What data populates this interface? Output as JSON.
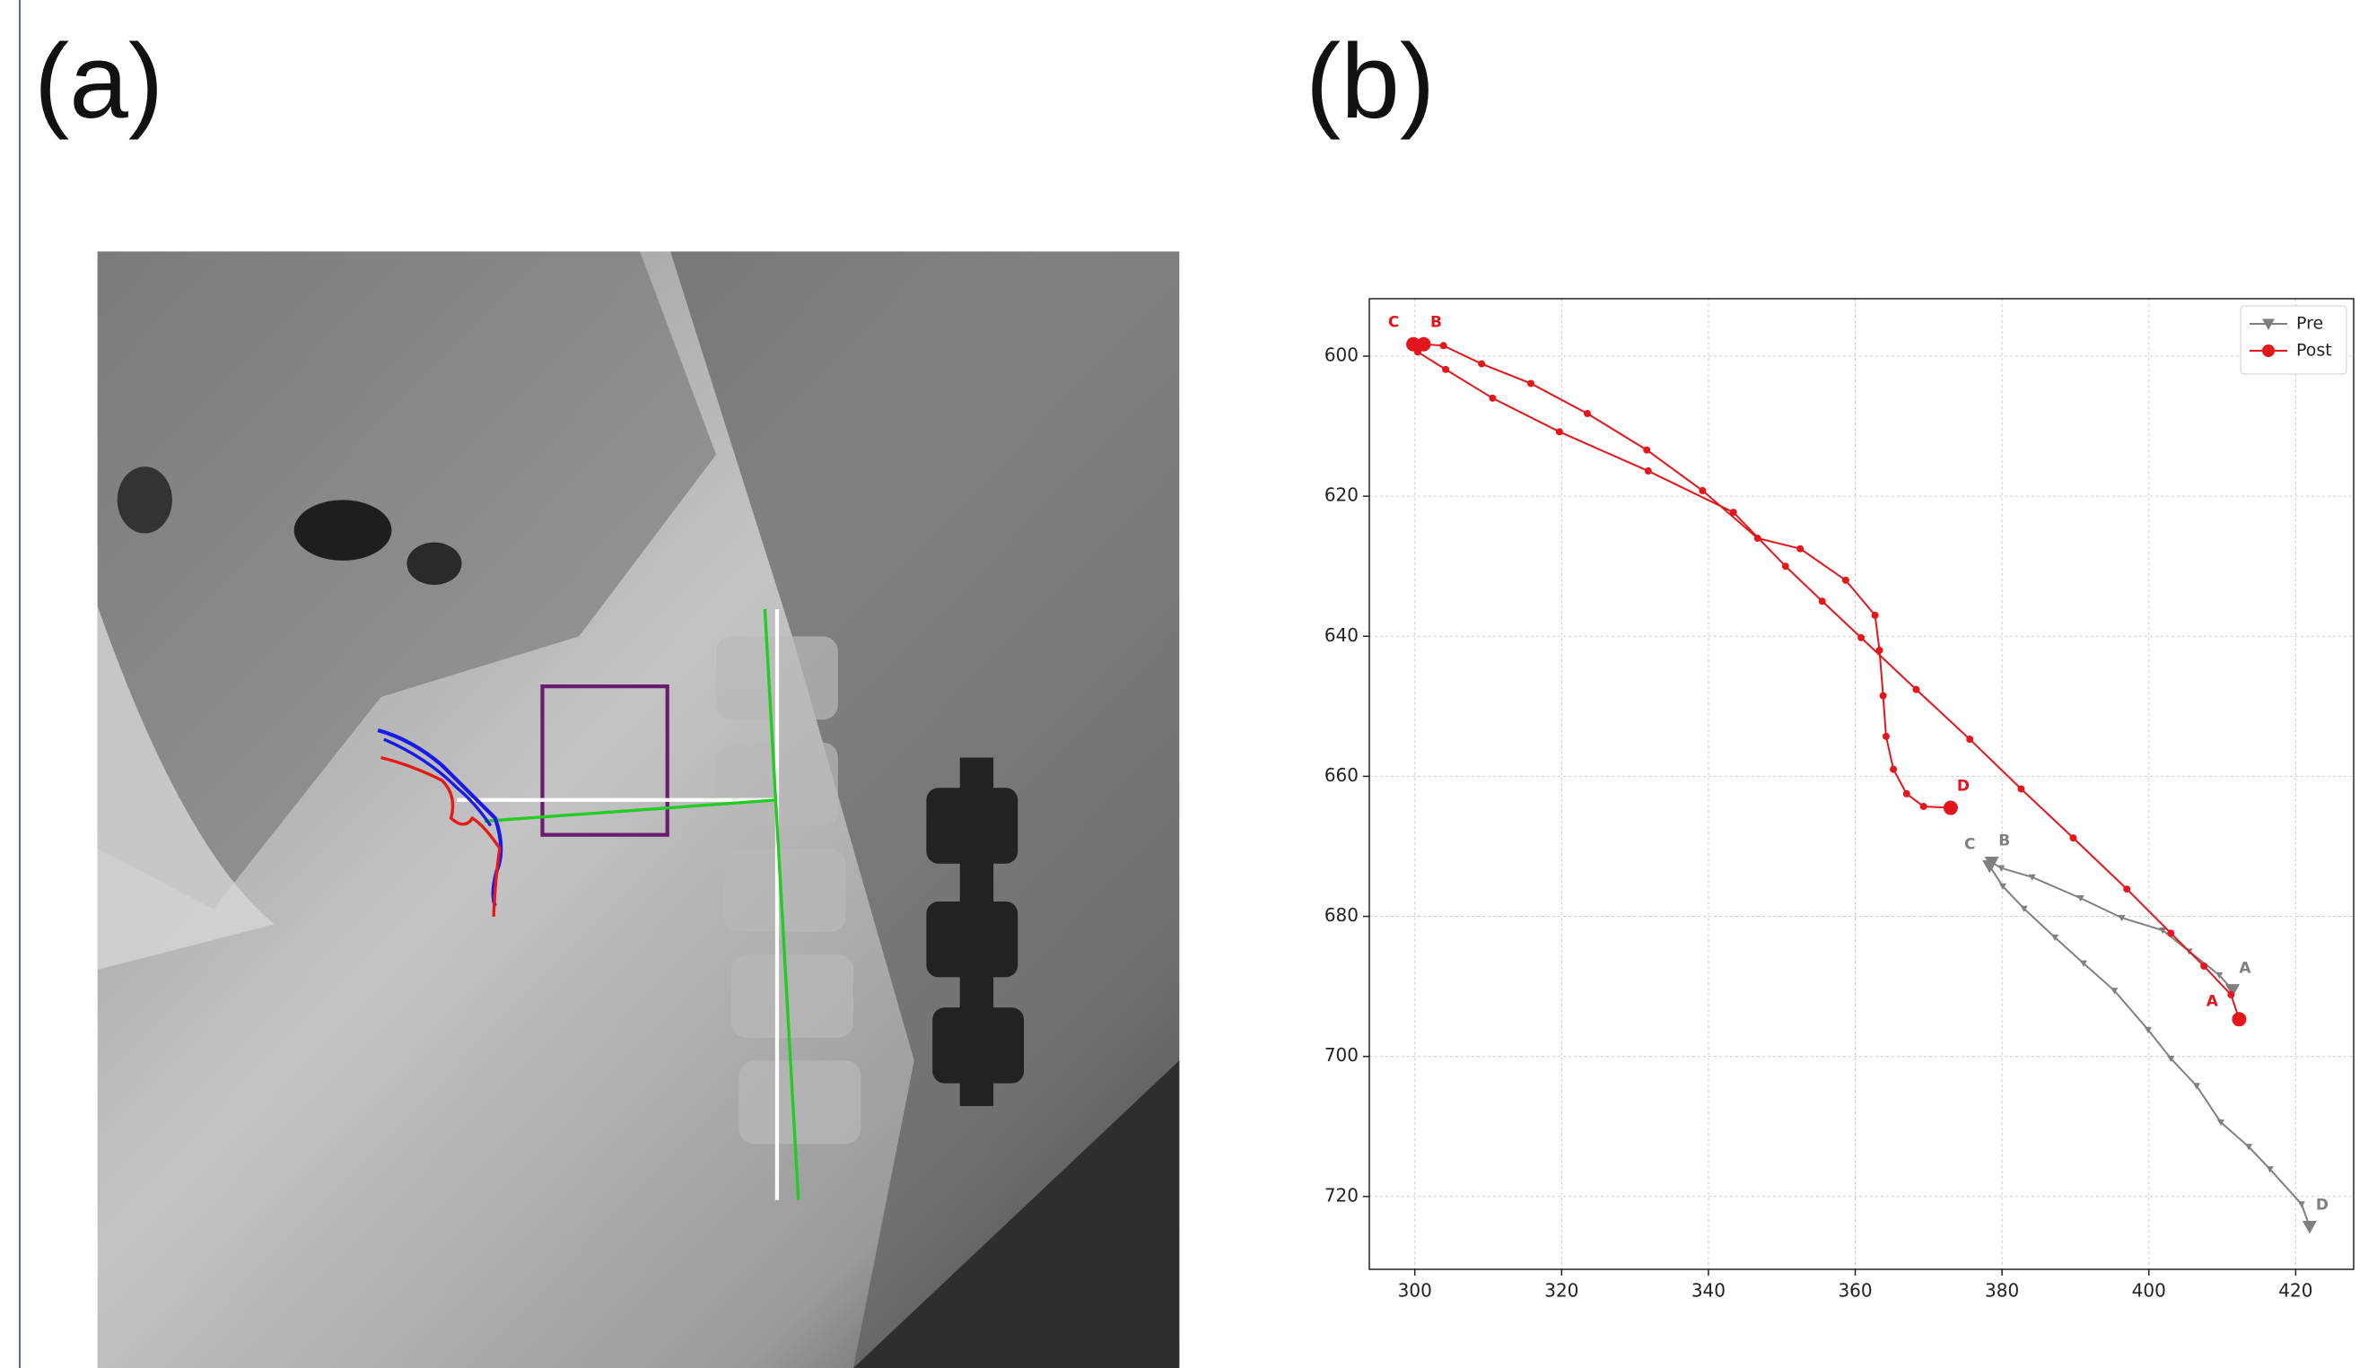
{
  "panel_labels": [
    "(a)",
    "(b)"
  ],
  "chart_data": {
    "type": "line",
    "xlim": [
      293.8,
      427.9
    ],
    "ylim": [
      730.4,
      591.8
    ],
    "xticks": [
      300,
      320,
      340,
      360,
      380,
      400,
      420
    ],
    "yticks": [
      600,
      620,
      640,
      660,
      680,
      700,
      720
    ],
    "grid": true,
    "legend": "upper right",
    "series": [
      {
        "name": "Pre",
        "color": "#808080",
        "marker": "triangle-down",
        "x": [
          411.4,
          409.6,
          405.5,
          401.9,
          396.3,
          390.7,
          384.1,
          379.9,
          378.6,
          378.3,
          380.1,
          383.0,
          387.2,
          391.1,
          395.3,
          399.9,
          403.0,
          406.5,
          409.8,
          413.6,
          416.5,
          420.8,
          421.9
        ],
        "values": [
          690.5,
          688.4,
          685.0,
          682.0,
          680.2,
          677.4,
          674.4,
          673.1,
          672.3,
          672.8,
          675.7,
          678.9,
          683.0,
          686.7,
          690.6,
          696.2,
          700.3,
          704.2,
          709.4,
          712.9,
          716.1,
          721.1,
          724.3
        ],
        "point_labels": [
          "A",
          null,
          null,
          null,
          null,
          null,
          null,
          null,
          "B",
          "C",
          null,
          null,
          null,
          null,
          null,
          null,
          null,
          null,
          null,
          null,
          null,
          null,
          "D"
        ]
      },
      {
        "name": "Post",
        "color": "#e3161c",
        "marker": "circle",
        "x": [
          412.3,
          411.2,
          407.5,
          403.0,
          397.0,
          389.7,
          382.6,
          375.6,
          368.3,
          360.8,
          355.5,
          350.5,
          343.4,
          331.8,
          319.7,
          310.6,
          304.2,
          300.4,
          299.8,
          301.2,
          303.9,
          309.1,
          315.8,
          323.5,
          331.6,
          339.2,
          346.7,
          352.5,
          358.7,
          362.7,
          363.3,
          363.8,
          364.2,
          365.2,
          367.0,
          369.3,
          373.0
        ],
        "values": [
          694.7,
          691.2,
          687.1,
          682.4,
          676.1,
          668.8,
          661.8,
          654.7,
          647.6,
          640.2,
          635.0,
          630.0,
          622.3,
          616.4,
          610.8,
          606.0,
          601.9,
          599.4,
          598.3,
          598.3,
          598.5,
          601.1,
          603.9,
          608.2,
          613.4,
          619.2,
          626.0,
          627.5,
          632.0,
          637.0,
          642.0,
          648.5,
          654.3,
          659.0,
          662.5,
          664.3,
          664.5
        ],
        "point_labels": [
          "A",
          null,
          null,
          null,
          null,
          null,
          null,
          null,
          null,
          null,
          null,
          null,
          null,
          null,
          null,
          null,
          null,
          null,
          "C",
          "B",
          null,
          null,
          null,
          null,
          null,
          null,
          null,
          null,
          null,
          null,
          null,
          null,
          null,
          null,
          null,
          null,
          "D"
        ]
      }
    ]
  }
}
